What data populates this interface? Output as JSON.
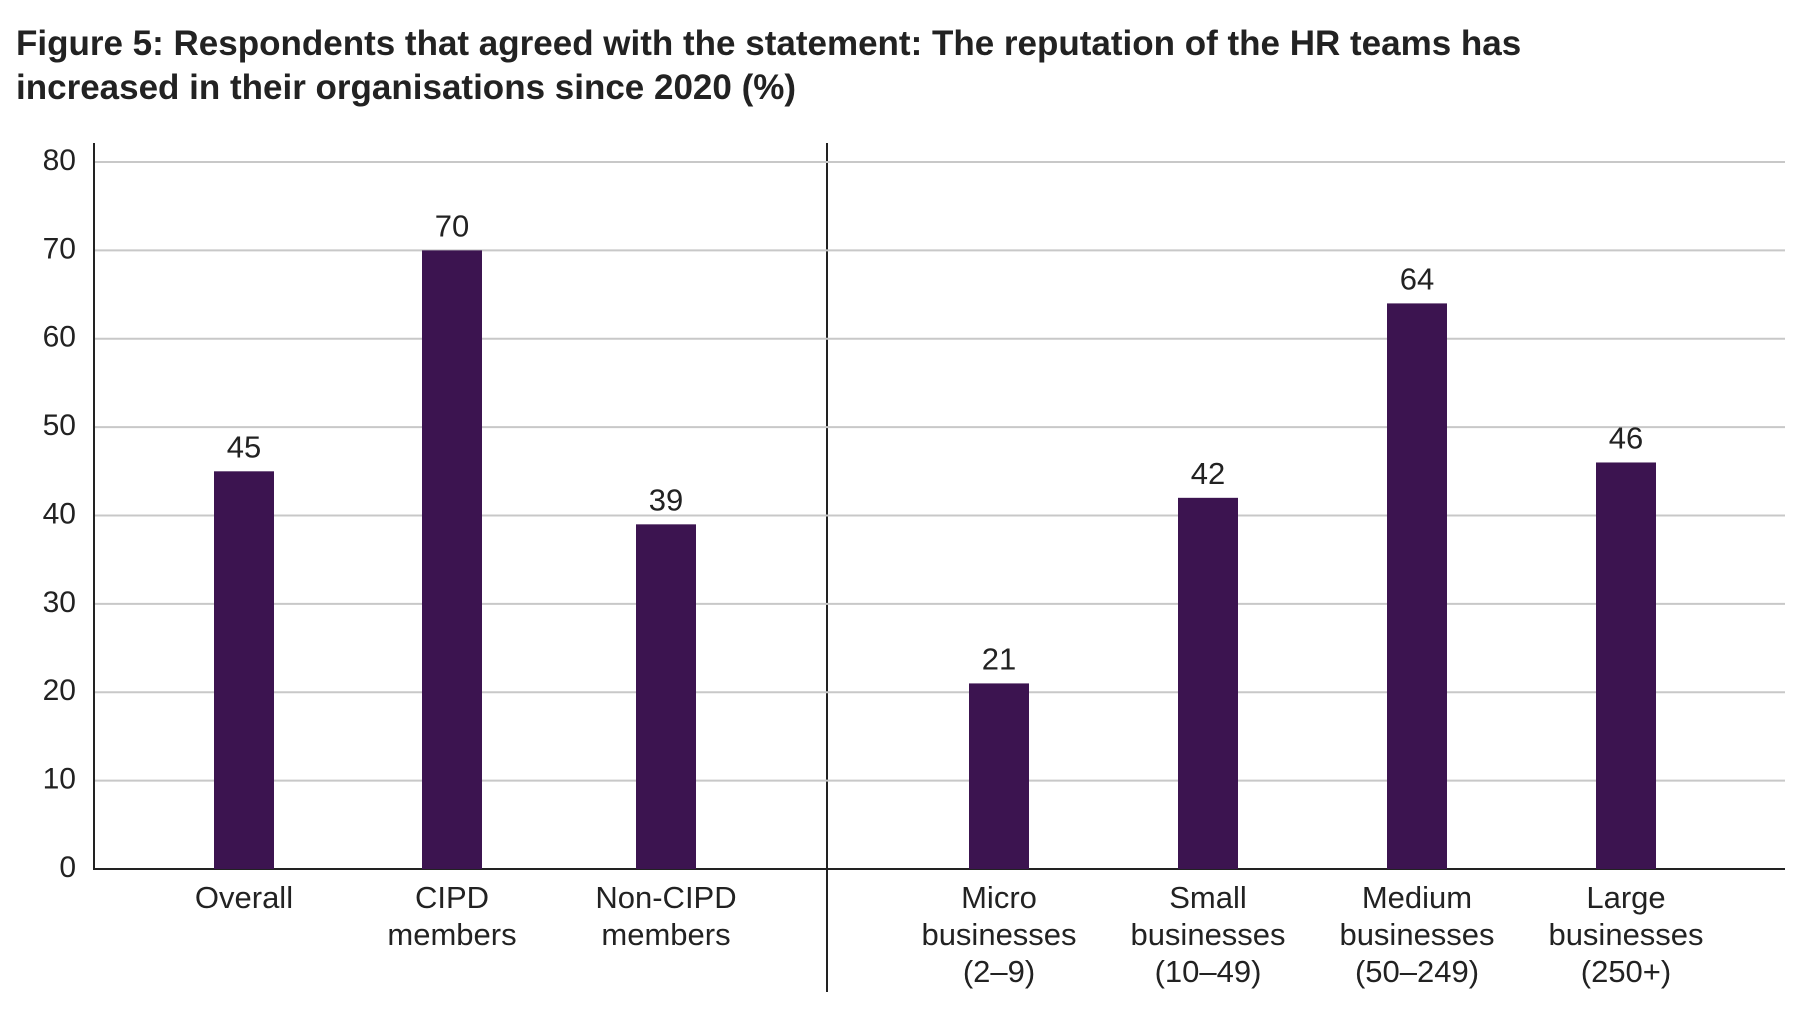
{
  "chart_data": {
    "type": "bar",
    "title": "Figure 5: Respondents that agreed with the statement: The reputation of the HR teams has increased in their organisations since 2020 (%)",
    "categories": [
      [
        "Overall"
      ],
      [
        "CIPD",
        "members"
      ],
      [
        "Non-CIPD",
        "members"
      ],
      [
        "Micro",
        "businesses",
        "(2–9)"
      ],
      [
        "Small",
        "businesses",
        "(10–49)"
      ],
      [
        "Medium",
        "businesses",
        "(50–249)"
      ],
      [
        "Large",
        "businesses",
        "(250+)"
      ]
    ],
    "values": [
      45,
      70,
      39,
      21,
      42,
      64,
      46
    ],
    "color": "#3c1450",
    "ylim": [
      0,
      80
    ],
    "yticks": [
      0,
      10,
      20,
      30,
      40,
      50,
      60,
      70,
      80
    ],
    "grid": true
  }
}
